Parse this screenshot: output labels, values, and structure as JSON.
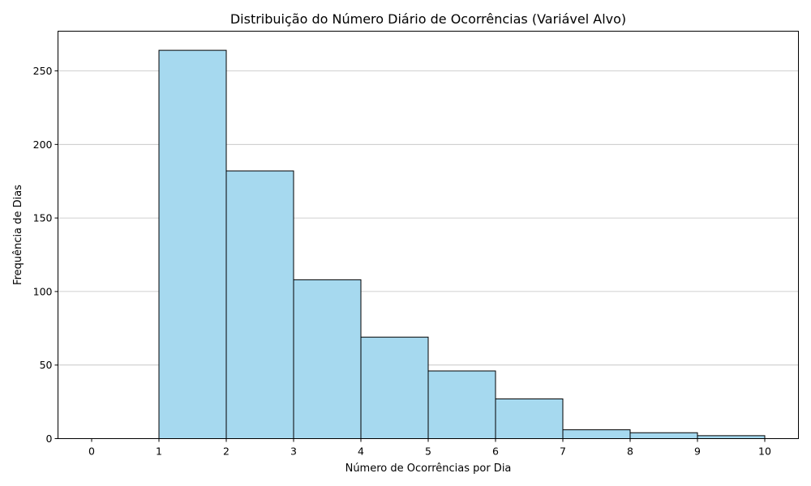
{
  "chart_data": {
    "type": "bar",
    "title": "Distribuição do Número Diário de Ocorrências (Variável Alvo)",
    "xlabel": "Número de Ocorrências por Dia",
    "ylabel": "Frequência de Dias",
    "bins": [
      {
        "start": 0,
        "end": 1,
        "value": 0
      },
      {
        "start": 1,
        "end": 2,
        "value": 264
      },
      {
        "start": 2,
        "end": 3,
        "value": 182
      },
      {
        "start": 3,
        "end": 4,
        "value": 108
      },
      {
        "start": 4,
        "end": 5,
        "value": 69
      },
      {
        "start": 5,
        "end": 6,
        "value": 46
      },
      {
        "start": 6,
        "end": 7,
        "value": 27
      },
      {
        "start": 7,
        "end": 8,
        "value": 6
      },
      {
        "start": 8,
        "end": 9,
        "value": 4
      },
      {
        "start": 9,
        "end": 10,
        "value": 2
      }
    ],
    "xticks": [
      "0",
      "1",
      "2",
      "3",
      "4",
      "5",
      "6",
      "7",
      "8",
      "9",
      "10"
    ],
    "yticks": [
      "0",
      "50",
      "100",
      "150",
      "200",
      "250"
    ],
    "xlim": [
      -0.5,
      10.5
    ],
    "ylim": [
      0,
      277
    ],
    "grid": "y",
    "bar_color": "#a6d9ef",
    "edge_color": "#000000",
    "grid_color": "#c0c0c0"
  }
}
